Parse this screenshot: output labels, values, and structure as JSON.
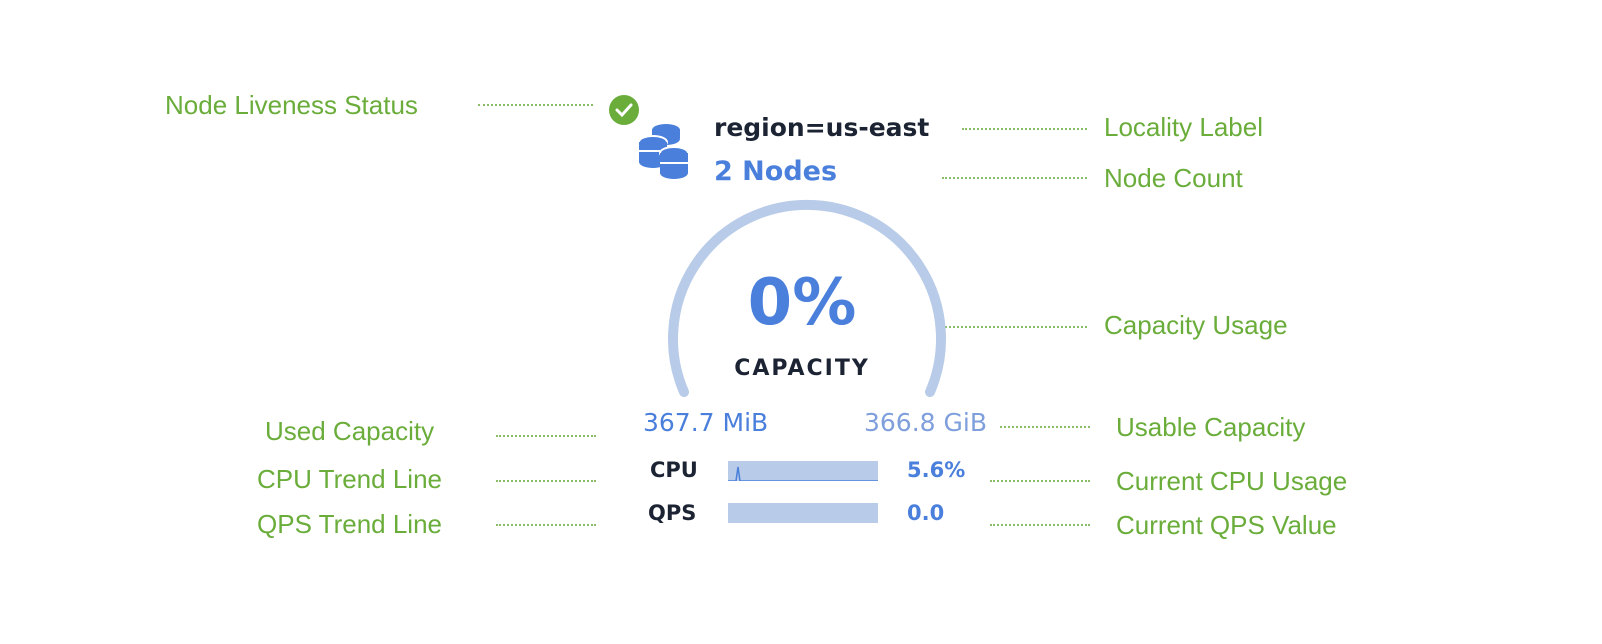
{
  "annotations": {
    "liveness": "Node Liveness Status",
    "locality": "Locality Label",
    "node_count": "Node Count",
    "capacity_usage": "Capacity Usage",
    "used_capacity": "Used Capacity",
    "usable_capacity": "Usable Capacity",
    "cpu_trend": "CPU Trend Line",
    "current_cpu": "Current CPU Usage",
    "qps_trend": "QPS Trend Line",
    "current_qps": "Current QPS Value"
  },
  "node": {
    "status": "live",
    "locality": "region=us-east",
    "count_label": "2 Nodes",
    "capacity_percent": "0%",
    "capacity_label": "CAPACITY",
    "used": "367.7 MiB",
    "usable": "366.8 GiB",
    "cpu_label": "CPU",
    "cpu_value": "5.6%",
    "qps_label": "QPS",
    "qps_value": "0.0"
  },
  "colors": {
    "accent": "#4a7fdc",
    "gauge": "#b8cbe8",
    "annotation": "#6aad3b",
    "live": "#6aad3b"
  }
}
